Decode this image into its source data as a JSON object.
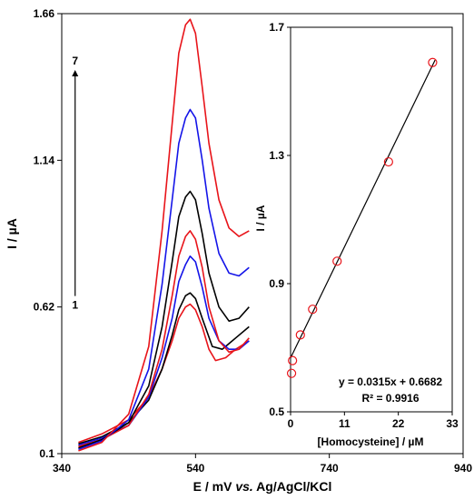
{
  "chart_data": [
    {
      "type": "line",
      "xlabel_parts": [
        "E / mV ",
        "vs.",
        " Ag/AgCl/KCl"
      ],
      "ylabel": "I / µA",
      "xlim": [
        340,
        940
      ],
      "ylim": [
        0.1,
        1.66
      ],
      "xticks": [
        "340",
        "540",
        "740",
        "940"
      ],
      "yticks": [
        "0.1",
        "0.62",
        "1.14",
        "1.66"
      ],
      "xtick_values": [
        340,
        540,
        740,
        940
      ],
      "ytick_values": [
        0.1,
        0.62,
        1.14,
        1.66
      ],
      "arrow_labels": {
        "start": "1",
        "end": "7"
      },
      "arrow_x": 360,
      "arrow_y": [
        0.62,
        1.46
      ],
      "series": [
        {
          "color": "#e8141a",
          "points": [
            [
              365,
              0.14
            ],
            [
              400,
              0.17
            ],
            [
              440,
              0.22
            ],
            [
              470,
              0.3
            ],
            [
              490,
              0.4
            ],
            [
              505,
              0.5
            ],
            [
              515,
              0.58
            ],
            [
              525,
              0.62
            ],
            [
              532,
              0.63
            ],
            [
              540,
              0.61
            ],
            [
              550,
              0.55
            ],
            [
              560,
              0.47
            ],
            [
              570,
              0.43
            ],
            [
              585,
              0.44
            ],
            [
              600,
              0.47
            ],
            [
              620,
              0.5
            ]
          ]
        },
        {
          "color": "#000000",
          "points": [
            [
              365,
              0.135
            ],
            [
              400,
              0.16
            ],
            [
              440,
              0.21
            ],
            [
              470,
              0.29
            ],
            [
              490,
              0.4
            ],
            [
              505,
              0.52
            ],
            [
              515,
              0.61
            ],
            [
              525,
              0.66
            ],
            [
              532,
              0.67
            ],
            [
              540,
              0.65
            ],
            [
              550,
              0.58
            ],
            [
              565,
              0.48
            ],
            [
              580,
              0.47
            ],
            [
              600,
              0.51
            ],
            [
              620,
              0.55
            ]
          ]
        },
        {
          "color": "#1414e8",
          "points": [
            [
              365,
              0.13
            ],
            [
              400,
              0.155
            ],
            [
              440,
              0.2
            ],
            [
              470,
              0.3
            ],
            [
              490,
              0.44
            ],
            [
              505,
              0.58
            ],
            [
              515,
              0.71
            ],
            [
              525,
              0.77
            ],
            [
              532,
              0.8
            ],
            [
              540,
              0.78
            ],
            [
              550,
              0.69
            ],
            [
              560,
              0.58
            ],
            [
              575,
              0.5
            ],
            [
              590,
              0.47
            ],
            [
              605,
              0.47
            ],
            [
              620,
              0.5
            ]
          ]
        },
        {
          "color": "#e8141a",
          "points": [
            [
              365,
              0.125
            ],
            [
              400,
              0.15
            ],
            [
              440,
              0.2
            ],
            [
              470,
              0.31
            ],
            [
              490,
              0.47
            ],
            [
              505,
              0.66
            ],
            [
              515,
              0.8
            ],
            [
              525,
              0.87
            ],
            [
              532,
              0.89
            ],
            [
              540,
              0.86
            ],
            [
              550,
              0.76
            ],
            [
              560,
              0.62
            ],
            [
              575,
              0.5
            ],
            [
              590,
              0.46
            ],
            [
              605,
              0.47
            ],
            [
              620,
              0.51
            ]
          ]
        },
        {
          "color": "#000000",
          "points": [
            [
              365,
              0.12
            ],
            [
              400,
              0.15
            ],
            [
              440,
              0.21
            ],
            [
              470,
              0.34
            ],
            [
              490,
              0.55
            ],
            [
              505,
              0.78
            ],
            [
              515,
              0.94
            ],
            [
              525,
              1.01
            ],
            [
              532,
              1.03
            ],
            [
              540,
              1.0
            ],
            [
              550,
              0.88
            ],
            [
              560,
              0.74
            ],
            [
              575,
              0.62
            ],
            [
              590,
              0.57
            ],
            [
              605,
              0.58
            ],
            [
              620,
              0.62
            ]
          ]
        },
        {
          "color": "#1414e8",
          "points": [
            [
              365,
              0.115
            ],
            [
              400,
              0.145
            ],
            [
              440,
              0.22
            ],
            [
              470,
              0.4
            ],
            [
              490,
              0.7
            ],
            [
              505,
              1.0
            ],
            [
              515,
              1.2
            ],
            [
              525,
              1.29
            ],
            [
              532,
              1.32
            ],
            [
              540,
              1.29
            ],
            [
              550,
              1.14
            ],
            [
              560,
              0.97
            ],
            [
              575,
              0.81
            ],
            [
              590,
              0.74
            ],
            [
              605,
              0.73
            ],
            [
              620,
              0.76
            ]
          ]
        },
        {
          "color": "#e8141a",
          "points": [
            [
              365,
              0.11
            ],
            [
              400,
              0.14
            ],
            [
              440,
              0.24
            ],
            [
              470,
              0.48
            ],
            [
              490,
              0.89
            ],
            [
              505,
              1.27
            ],
            [
              515,
              1.52
            ],
            [
              525,
              1.62
            ],
            [
              532,
              1.64
            ],
            [
              540,
              1.59
            ],
            [
              550,
              1.4
            ],
            [
              560,
              1.2
            ],
            [
              575,
              1.0
            ],
            [
              590,
              0.9
            ],
            [
              605,
              0.87
            ],
            [
              620,
              0.89
            ]
          ]
        }
      ]
    },
    {
      "type": "scatter",
      "xlabel": "[Homocysteine] / µM",
      "ylabel": "I / µA",
      "xlim": [
        0,
        33
      ],
      "ylim": [
        0.5,
        1.7
      ],
      "xticks": [
        "0",
        "11",
        "22",
        "33"
      ],
      "yticks": [
        "0.5",
        "0.9",
        "1.3",
        "1.7"
      ],
      "xtick_values": [
        0,
        11,
        22,
        33
      ],
      "ytick_values": [
        0.5,
        0.9,
        1.3,
        1.7
      ],
      "points": [
        [
          0.2,
          0.62
        ],
        [
          0.4,
          0.66
        ],
        [
          2.0,
          0.74
        ],
        [
          4.5,
          0.82
        ],
        [
          9.5,
          0.97
        ],
        [
          20.0,
          1.28
        ],
        [
          29.0,
          1.59
        ]
      ],
      "fit": {
        "slope": 0.0315,
        "intercept": 0.6682,
        "x_range": [
          0,
          29.5
        ]
      },
      "equation": "y = 0.0315x + 0.6682",
      "r2_label": "R² = 0.9916",
      "marker_color": "#e8141a",
      "line_color": "#000000"
    }
  ]
}
